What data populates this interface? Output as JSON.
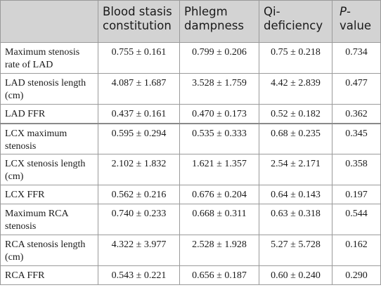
{
  "table": {
    "headers": {
      "col0": "",
      "col1": "Blood stasis constitution",
      "col2": "Phlegm dampness",
      "col3": "Qi-deficiency",
      "col4_italic": "P",
      "col4_rest": "-value"
    },
    "rows": [
      {
        "label": "Maximum stenosis rate of LAD",
        "blood": "0.755 ± 0.161",
        "phlegm": "0.799 ± 0.206",
        "qi": "0.75 ± 0.218",
        "p": "0.734"
      },
      {
        "label": "LAD stenosis length (cm)",
        "blood": "4.087 ± 1.687",
        "phlegm": "3.528 ± 1.759",
        "qi": "4.42 ± 2.839",
        "p": "0.477"
      },
      {
        "label": "LAD FFR",
        "blood": "0.437 ± 0.161",
        "phlegm": "0.470 ± 0.173",
        "qi": "0.52 ± 0.182",
        "p": "0.362"
      },
      {
        "label": "LCX maximum stenosis",
        "blood": "0.595 ± 0.294",
        "phlegm": "0.535 ± 0.333",
        "qi": "0.68 ± 0.235",
        "p": "0.345"
      },
      {
        "label": "LCX stenosis length (cm)",
        "blood": "2.102 ± 1.832",
        "phlegm": "1.621 ± 1.357",
        "qi": "2.54 ± 2.171",
        "p": "0.358"
      },
      {
        "label": "LCX FFR",
        "blood": "0.562 ± 0.216",
        "phlegm": "0.676 ± 0.204",
        "qi": "0.64 ± 0.143",
        "p": "0.197"
      },
      {
        "label": "Maximum RCA stenosis",
        "blood": "0.740 ± 0.233",
        "phlegm": "0.668 ± 0.311",
        "qi": "0.63 ± 0.318",
        "p": "0.544"
      },
      {
        "label": "RCA stenosis length (cm)",
        "blood": "4.322 ± 3.977",
        "phlegm": "2.528 ± 1.928",
        "qi": "5.27 ± 5.728",
        "p": "0.162"
      },
      {
        "label": "RCA FFR",
        "blood": "0.543 ± 0.221",
        "phlegm": "0.656 ± 0.187",
        "qi": "0.60 ± 0.240",
        "p": "0.290"
      }
    ]
  },
  "colors": {
    "header_bg": "#d3d3d3",
    "border": "#9a9a9a",
    "text": "#1a1a1a"
  }
}
